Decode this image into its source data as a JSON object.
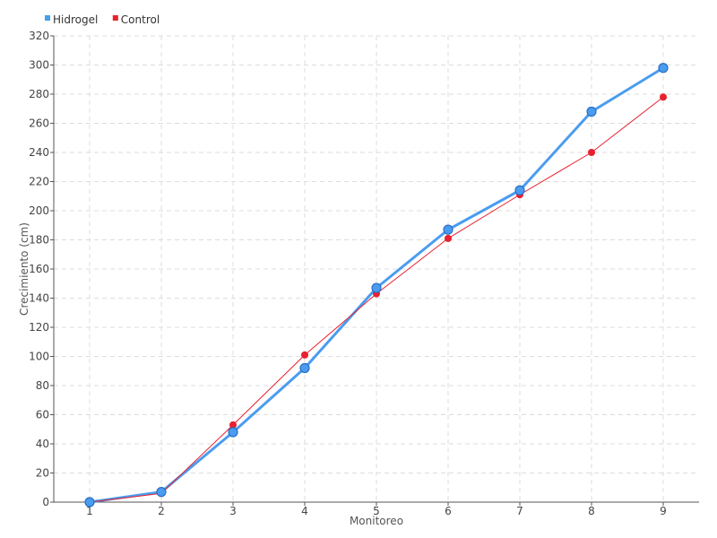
{
  "chart_data": {
    "type": "line",
    "title": "",
    "xlabel": "Monitoreo",
    "ylabel": "Crecimiento (cm)",
    "categories": [
      "1",
      "2",
      "3",
      "4",
      "5",
      "6",
      "7",
      "8",
      "9"
    ],
    "ylim": [
      0,
      320
    ],
    "yticks": [
      0,
      20,
      40,
      60,
      80,
      100,
      120,
      140,
      160,
      180,
      200,
      220,
      240,
      260,
      280,
      300,
      320
    ],
    "grid": true,
    "legend_position": "top-left",
    "series": [
      {
        "name": "Hidrogel",
        "color": "#4a9cf0",
        "values": [
          0,
          7,
          48,
          92,
          147,
          187,
          214,
          268,
          298
        ]
      },
      {
        "name": "Control",
        "color": "#e8202f",
        "values": [
          0,
          6,
          53,
          101,
          143,
          181,
          211,
          240,
          278
        ]
      }
    ]
  }
}
